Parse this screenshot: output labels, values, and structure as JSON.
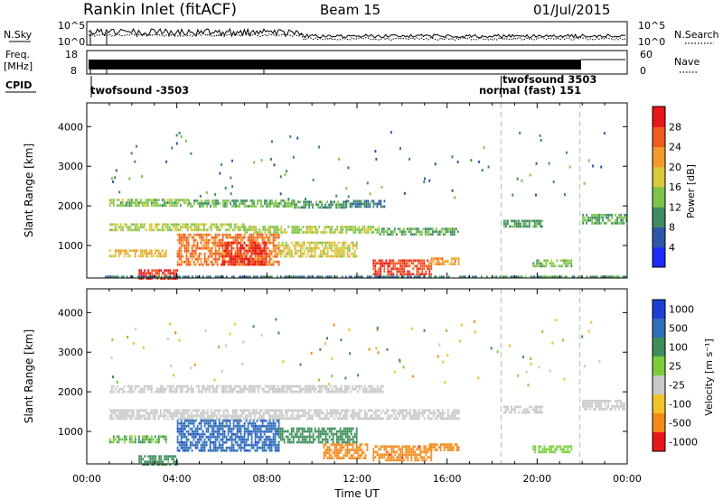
{
  "header": {
    "station": "Rankin Inlet (fitACF)",
    "beam": "Beam 15",
    "date": "01/Jul/2015"
  },
  "strip_panels": {
    "nsky": {
      "left_label": "N.Sky",
      "left_ticks": [
        "10^5",
        "10^0"
      ],
      "right_label": "N.Search",
      "right_ticks": [
        "10^5",
        "10^0"
      ]
    },
    "freq": {
      "left_label_line1": "Freq.",
      "left_label_line2": "[MHz]",
      "left_ticks": [
        "18",
        "8"
      ],
      "right_label": "Nave",
      "right_ticks": [
        "60",
        "0"
      ]
    },
    "cpid": {
      "label": "CPID",
      "segments": [
        {
          "text": "twofsound -3503",
          "start_hour": 0.2
        },
        {
          "text": "normal (fast) 151",
          "start_hour": 18.4
        },
        {
          "text": "twofsound 3503",
          "start_hour": 18.4
        }
      ]
    }
  },
  "chart_data": [
    {
      "type": "heatmap",
      "title": "",
      "xlabel": "",
      "ylabel": "Slant Range [km]",
      "x_unit": "hour UT",
      "xlim": [
        0,
        24
      ],
      "ylim": [
        180,
        4600
      ],
      "y_ticks": [
        1000,
        2000,
        3000,
        4000
      ],
      "colorbar": {
        "label": "Power [dB]",
        "range": [
          0,
          32
        ],
        "ticks": [
          "4",
          "8",
          "12",
          "16",
          "20",
          "24",
          "28"
        ],
        "colors": [
          "#1a2bff",
          "#2c57a8",
          "#3d8c62",
          "#7cc44a",
          "#d8c83a",
          "#f29a2a",
          "#ef5a1e",
          "#e8161a"
        ]
      },
      "cutoff_hours": [
        18.4,
        21.9
      ],
      "echo_regions": [
        {
          "t0": 1.0,
          "t1": 4.5,
          "r0": 1980,
          "r1": 2180,
          "value": 14
        },
        {
          "t0": 4.5,
          "t1": 9.2,
          "r0": 1990,
          "r1": 2160,
          "value": 13
        },
        {
          "t0": 9.2,
          "t1": 11.5,
          "r0": 1990,
          "r1": 2130,
          "value": 10
        },
        {
          "t0": 11.5,
          "t1": 13.2,
          "r0": 1980,
          "r1": 2150,
          "value": 9
        },
        {
          "t0": 1.0,
          "t1": 7.0,
          "r0": 1380,
          "r1": 1560,
          "value": 16
        },
        {
          "t0": 7.0,
          "t1": 13.0,
          "r0": 1350,
          "r1": 1500,
          "value": 15
        },
        {
          "t0": 13.0,
          "t1": 16.5,
          "r0": 1300,
          "r1": 1450,
          "value": 12
        },
        {
          "t0": 1.0,
          "t1": 3.5,
          "r0": 700,
          "r1": 900,
          "value": 20
        },
        {
          "t0": 4.0,
          "t1": 8.5,
          "r0": 500,
          "r1": 1300,
          "value": 24
        },
        {
          "t0": 6.0,
          "t1": 8.0,
          "r0": 550,
          "r1": 1100,
          "value": 29
        },
        {
          "t0": 8.5,
          "t1": 12.0,
          "r0": 700,
          "r1": 1100,
          "value": 18
        },
        {
          "t0": 2.3,
          "t1": 4.0,
          "r0": 180,
          "r1": 400,
          "value": 29
        },
        {
          "t0": 12.7,
          "t1": 15.3,
          "r0": 300,
          "r1": 650,
          "value": 28
        },
        {
          "t0": 15.2,
          "t1": 16.5,
          "r0": 500,
          "r1": 700,
          "value": 22
        },
        {
          "t0": 0.8,
          "t1": 18.0,
          "r0": 180,
          "r1": 240,
          "value": 8
        },
        {
          "t0": 18.5,
          "t1": 20.2,
          "r0": 1500,
          "r1": 1650,
          "value": 11
        },
        {
          "t0": 22.0,
          "t1": 24.0,
          "r0": 1550,
          "r1": 1800,
          "value": 12
        },
        {
          "t0": 19.8,
          "t1": 21.5,
          "r0": 450,
          "r1": 650,
          "value": 14
        },
        {
          "t0": 18.0,
          "t1": 24.0,
          "r0": 180,
          "r1": 240,
          "value": 10
        }
      ]
    },
    {
      "type": "heatmap",
      "title": "",
      "xlabel": "Time UT",
      "ylabel": "Slant Range [km]",
      "x_unit": "hour UT",
      "xlim": [
        0,
        24
      ],
      "x_ticks": [
        "00:00",
        "04:00",
        "08:00",
        "12:00",
        "16:00",
        "20:00",
        "00:00"
      ],
      "ylim": [
        180,
        4600
      ],
      "y_ticks": [
        1000,
        2000,
        3000,
        4000
      ],
      "colorbar": {
        "label": "Velocity [m s⁻¹]",
        "tick_labels": [
          "1000",
          "500",
          "100",
          "25",
          "-25",
          "-100",
          "-500",
          "-1000"
        ],
        "colors": [
          "#1e3fd6",
          "#2f6fb8",
          "#3e8e5a",
          "#7ccd3c",
          "#c8c8c8",
          "#f2c22a",
          "#f28a1a",
          "#e8161a"
        ]
      },
      "cutoff_hours": [
        18.4,
        21.9
      ],
      "echo_regions": [
        {
          "t0": 1.0,
          "t1": 13.2,
          "r0": 1980,
          "r1": 2170,
          "value": 0
        },
        {
          "t0": 1.0,
          "t1": 16.5,
          "r0": 1330,
          "r1": 1560,
          "value": 0
        },
        {
          "t0": 1.0,
          "t1": 3.5,
          "r0": 700,
          "r1": 900,
          "value": 100
        },
        {
          "t0": 4.0,
          "t1": 8.5,
          "r0": 500,
          "r1": 1300,
          "value": 800
        },
        {
          "t0": 8.5,
          "t1": 12.0,
          "r0": 700,
          "r1": 1100,
          "value": 200
        },
        {
          "t0": 2.3,
          "t1": 4.0,
          "r0": 180,
          "r1": 400,
          "value": 150
        },
        {
          "t0": 12.7,
          "t1": 15.3,
          "r0": 300,
          "r1": 650,
          "value": -400
        },
        {
          "t0": 10.5,
          "t1": 12.5,
          "r0": 300,
          "r1": 700,
          "value": -150
        },
        {
          "t0": 15.2,
          "t1": 16.5,
          "r0": 500,
          "r1": 700,
          "value": -300
        },
        {
          "t0": 18.5,
          "t1": 20.2,
          "r0": 1500,
          "r1": 1650,
          "value": 0
        },
        {
          "t0": 22.0,
          "t1": 24.0,
          "r0": 1550,
          "r1": 1800,
          "value": 0
        },
        {
          "t0": 19.8,
          "t1": 21.5,
          "r0": 450,
          "r1": 650,
          "value": 60
        }
      ]
    }
  ]
}
